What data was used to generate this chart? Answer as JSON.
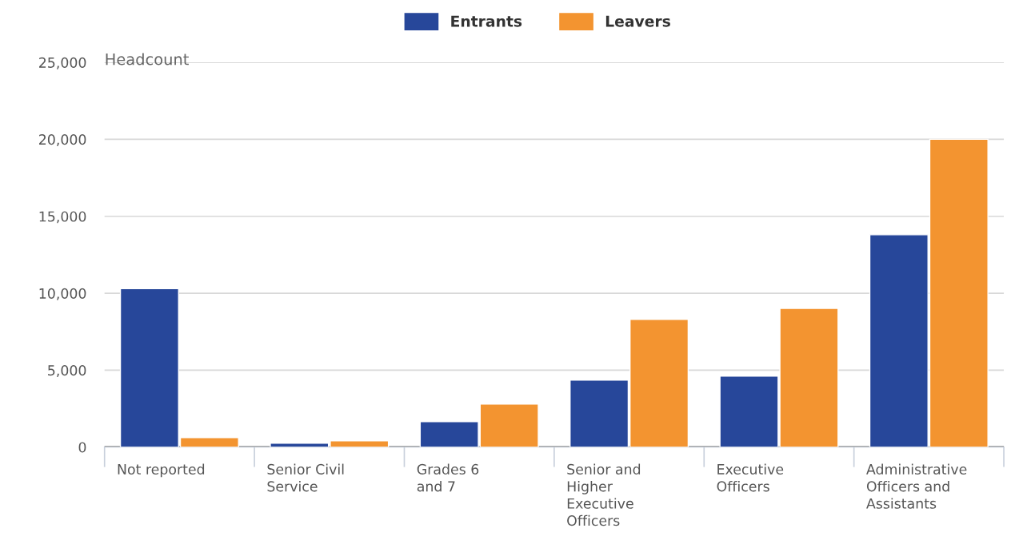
{
  "chart_data": {
    "type": "bar",
    "ylabel": "Headcount",
    "categories": [
      "Not reported",
      "Senior Civil\nService",
      "Grades 6\nand 7",
      "Senior and\nHigher\nExecutive\nOfficers",
      "Executive\nOfficers",
      "Administrative\nOfficers and\nAssistants"
    ],
    "series": [
      {
        "name": "Entrants",
        "color": "#27479a",
        "values": [
          10300,
          260,
          1660,
          4360,
          4620,
          13800
        ]
      },
      {
        "name": "Leavers",
        "color": "#f39430",
        "values": [
          620,
          410,
          2800,
          8300,
          9020,
          20000
        ]
      }
    ],
    "ylim": [
      0,
      25000
    ],
    "yticks": [
      {
        "value": 0,
        "label": "0"
      },
      {
        "value": 5000,
        "label": "5,000"
      },
      {
        "value": 10000,
        "label": "10,000"
      },
      {
        "value": 15000,
        "label": "15,000"
      },
      {
        "value": 20000,
        "label": "20,000"
      },
      {
        "value": 25000,
        "label": "25,000"
      }
    ],
    "grid": "y",
    "legend": "top"
  }
}
